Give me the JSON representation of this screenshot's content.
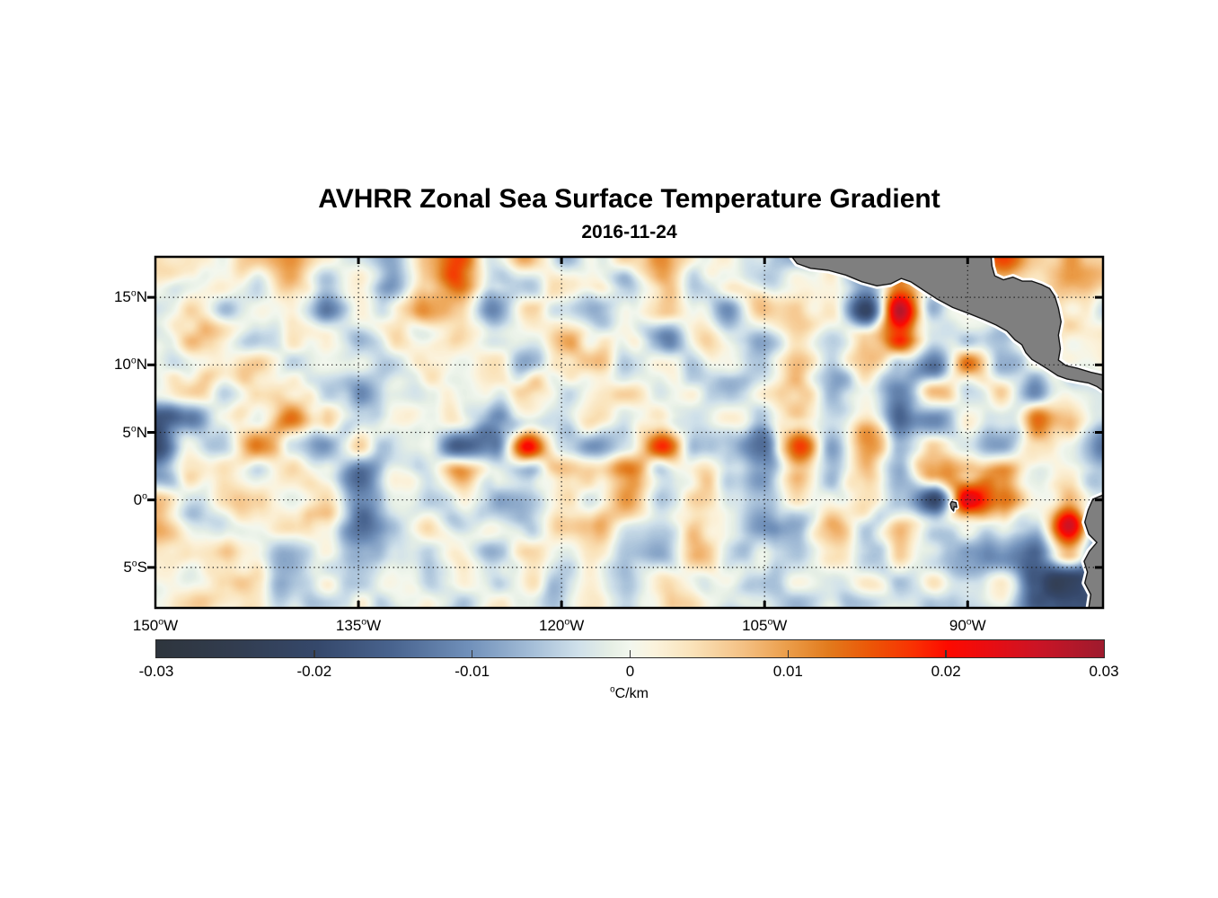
{
  "figure": {
    "title": "AVHRR Zonal Sea Surface Temperature Gradient",
    "date": "2016-11-24"
  },
  "style": {
    "background": "#ffffff",
    "axis_color": "#000000",
    "grid_color": "#1a1a1a",
    "text_color": "#000000"
  },
  "chart_data": {
    "type": "heatmap",
    "title": "AVHRR Zonal Sea Surface Temperature Gradient",
    "subtitle": "2016-11-24",
    "variable": "zonal sea surface temperature gradient",
    "units": "°C/km",
    "extent": {
      "lon_west_deg_w": 150,
      "lon_east_deg_w": 80,
      "lat_north": 18,
      "lat_south": -8
    },
    "x_axis": {
      "ticks": [
        {
          "lon_deg_w": 150,
          "label": "150°W"
        },
        {
          "lon_deg_w": 135,
          "label": "135°W"
        },
        {
          "lon_deg_w": 120,
          "label": "120°W"
        },
        {
          "lon_deg_w": 105,
          "label": "105°W"
        },
        {
          "lon_deg_w": 90,
          "label": "90°W"
        }
      ],
      "grid_lons_deg_w": [
        135,
        120,
        105,
        90
      ]
    },
    "y_axis": {
      "ticks": [
        {
          "lat": 15,
          "label": "15°N"
        },
        {
          "lat": 10,
          "label": "10°N"
        },
        {
          "lat": 5,
          "label": "5°N"
        },
        {
          "lat": 0,
          "label": "0°"
        },
        {
          "lat": -5,
          "label": "5°S"
        }
      ],
      "grid_lats": [
        15,
        10,
        5,
        0,
        -5
      ]
    },
    "colorbar": {
      "min": -0.03,
      "max": 0.03,
      "tick_values": [
        -0.03,
        -0.02,
        -0.01,
        0,
        0.01,
        0.02,
        0.03
      ],
      "tick_labels": [
        "-0.03",
        "-0.02",
        "-0.01",
        "0",
        "0.01",
        "0.02",
        "0.03"
      ],
      "inner_tick_values": [
        -0.02,
        -0.01,
        0,
        0.01,
        0.02
      ],
      "label": "°C/km",
      "stops": [
        {
          "t": 0.0,
          "color": "#2e353d"
        },
        {
          "t": 0.085,
          "color": "#323d50"
        },
        {
          "t": 0.17,
          "color": "#35486b"
        },
        {
          "t": 0.25,
          "color": "#49648f"
        },
        {
          "t": 0.33,
          "color": "#7090ba"
        },
        {
          "t": 0.4,
          "color": "#a7c0d9"
        },
        {
          "t": 0.445,
          "color": "#cfe0ea"
        },
        {
          "t": 0.48,
          "color": "#e6efe5"
        },
        {
          "t": 0.5,
          "color": "#f2f7ee"
        },
        {
          "t": 0.525,
          "color": "#fbf3dd"
        },
        {
          "t": 0.565,
          "color": "#fae3ba"
        },
        {
          "t": 0.62,
          "color": "#f4c083"
        },
        {
          "t": 0.665,
          "color": "#eb9e4b"
        },
        {
          "t": 0.71,
          "color": "#e27a1c"
        },
        {
          "t": 0.755,
          "color": "#ec5506"
        },
        {
          "t": 0.8,
          "color": "#f93002"
        },
        {
          "t": 0.835,
          "color": "#fd0a00"
        },
        {
          "t": 0.88,
          "color": "#e80d12"
        },
        {
          "t": 0.93,
          "color": "#cb1425"
        },
        {
          "t": 1.0,
          "color": "#9e1b2e"
        }
      ]
    },
    "grid": {
      "comment": "approximate field sampled from map, units 0.001 °C/km",
      "lon_start_deg_w": 150,
      "lon_step_deg": 2.5,
      "lat_start": 18,
      "lat_step_deg": -2,
      "values": [
        [
          2,
          3,
          -2,
          3,
          6,
          2,
          -2,
          -10,
          4,
          14,
          3,
          10,
          -6,
          4,
          10,
          6,
          -3,
          3,
          2,
          0,
          0,
          0,
          0,
          0,
          0,
          14,
          3,
          6,
          3
        ],
        [
          2,
          -3,
          3,
          -2,
          8,
          -3,
          2,
          -12,
          2,
          14,
          2,
          -4,
          3,
          6,
          -2,
          8,
          -4,
          2,
          -6,
          4,
          0,
          -8,
          14,
          0,
          0,
          4,
          2,
          8,
          5
        ],
        [
          2,
          4,
          -2,
          3,
          2,
          -8,
          3,
          -3,
          10,
          3,
          -10,
          4,
          -2,
          -8,
          3,
          10,
          3,
          -10,
          4,
          6,
          2,
          -20,
          28,
          -3,
          3,
          0,
          0,
          4,
          -3
        ],
        [
          -2,
          3,
          5,
          -3,
          2,
          4,
          -6,
          3,
          -3,
          6,
          -3,
          2,
          6,
          -3,
          2,
          -8,
          4,
          -2,
          -3,
          4,
          -6,
          4,
          16,
          -6,
          -3,
          -8,
          0,
          2,
          4
        ],
        [
          3,
          -4,
          2,
          6,
          -2,
          3,
          2,
          -4,
          4,
          -2,
          3,
          -6,
          2,
          4,
          -4,
          2,
          -3,
          5,
          -2,
          3,
          -4,
          8,
          -4,
          -16,
          12,
          -6,
          0,
          0,
          3
        ],
        [
          2,
          3,
          -6,
          2,
          4,
          -3,
          -8,
          3,
          2,
          -4,
          2,
          3,
          -4,
          2,
          3,
          -3,
          2,
          -4,
          3,
          2,
          -3,
          4,
          -8,
          10,
          -4,
          8,
          -8,
          0,
          0
        ],
        [
          -18,
          -10,
          3,
          -2,
          14,
          2,
          -3,
          2,
          -2,
          3,
          -6,
          2,
          -3,
          3,
          -2,
          3,
          -4,
          2,
          -3,
          3,
          -4,
          3,
          -14,
          -10,
          4,
          -3,
          10,
          3,
          -4
        ],
        [
          -20,
          4,
          -3,
          14,
          -3,
          -12,
          6,
          -4,
          -3,
          -16,
          -12,
          22,
          -4,
          -10,
          -4,
          18,
          -6,
          -8,
          -14,
          18,
          -8,
          10,
          -6,
          4,
          -3,
          -10,
          4,
          -4,
          -12
        ],
        [
          -8,
          3,
          2,
          -3,
          3,
          -3,
          -12,
          4,
          -4,
          12,
          -4,
          -10,
          4,
          3,
          8,
          -3,
          3,
          -4,
          -8,
          6,
          -4,
          8,
          -10,
          8,
          6,
          10,
          -4,
          3,
          -3
        ],
        [
          2,
          -3,
          4,
          2,
          -3,
          3,
          -8,
          3,
          -3,
          4,
          -6,
          -4,
          3,
          -2,
          8,
          -3,
          2,
          -3,
          -6,
          3,
          -4,
          4,
          -8,
          -20,
          26,
          10,
          -3,
          6,
          -2
        ],
        [
          3,
          2,
          -4,
          -2,
          3,
          -3,
          -10,
          -4,
          6,
          -3,
          2,
          -4,
          8,
          8,
          -4,
          -3,
          4,
          -3,
          -10,
          -6,
          6,
          -6,
          6,
          -4,
          4,
          -3,
          -6,
          26,
          -6
        ],
        [
          -2,
          4,
          2,
          -3,
          -6,
          3,
          -4,
          2,
          -3,
          3,
          -4,
          2,
          -3,
          3,
          -2,
          -8,
          6,
          -3,
          2,
          -4,
          3,
          -4,
          4,
          -6,
          -4,
          -8,
          -14,
          8,
          -12
        ],
        [
          2,
          -3,
          3,
          2,
          -3,
          2,
          -2,
          4,
          -3,
          2,
          -3,
          4,
          -4,
          2,
          -3,
          2,
          -4,
          3,
          -2,
          2,
          -3,
          3,
          -4,
          3,
          -6,
          4,
          -18,
          -22,
          -16
        ],
        [
          1,
          2,
          -2,
          3,
          2,
          -3,
          2,
          -2,
          3,
          -4,
          2,
          3,
          -3,
          2,
          -2,
          3,
          2,
          -3,
          2,
          -2,
          3,
          -3,
          2,
          -3,
          -8,
          -4,
          -14,
          -18,
          -12
        ]
      ]
    },
    "land": {
      "fill": "#7f7f7f",
      "outline": "#141414",
      "coast_halo": "#ffffff",
      "polygons": {
        "central_america": [
          [
            103.2,
            18.3
          ],
          [
            102.6,
            17.5
          ],
          [
            101.6,
            17.15
          ],
          [
            100.3,
            17.0
          ],
          [
            99.0,
            16.65
          ],
          [
            97.8,
            16.15
          ],
          [
            96.7,
            15.85
          ],
          [
            95.7,
            16.0
          ],
          [
            94.9,
            16.4
          ],
          [
            94.2,
            16.15
          ],
          [
            93.3,
            15.55
          ],
          [
            92.3,
            14.9
          ],
          [
            91.1,
            14.25
          ],
          [
            89.9,
            13.8
          ],
          [
            88.8,
            13.35
          ],
          [
            87.9,
            12.95
          ],
          [
            87.1,
            12.5
          ],
          [
            86.5,
            11.85
          ],
          [
            86.0,
            11.5
          ],
          [
            85.7,
            10.9
          ],
          [
            85.25,
            10.4
          ],
          [
            84.65,
            10.05
          ],
          [
            83.95,
            9.6
          ],
          [
            83.35,
            9.2
          ],
          [
            82.65,
            8.95
          ],
          [
            81.85,
            8.8
          ],
          [
            81.05,
            8.65
          ],
          [
            80.45,
            8.4
          ],
          [
            79.8,
            7.95
          ],
          [
            79.8,
            9.2
          ],
          [
            80.9,
            9.45
          ],
          [
            81.9,
            9.75
          ],
          [
            82.75,
            9.95
          ],
          [
            83.3,
            10.35
          ],
          [
            83.15,
            11.2
          ],
          [
            83.3,
            12.2
          ],
          [
            83.1,
            13.2
          ],
          [
            83.3,
            14.2
          ],
          [
            83.55,
            15.05
          ],
          [
            83.95,
            15.65
          ],
          [
            84.55,
            15.95
          ],
          [
            85.25,
            16.2
          ],
          [
            85.95,
            16.2
          ],
          [
            86.65,
            16.5
          ],
          [
            87.35,
            16.3
          ],
          [
            88.0,
            16.6
          ],
          [
            88.2,
            17.3
          ],
          [
            88.3,
            18.3
          ]
        ],
        "south_america": [
          [
            79.8,
            0.45
          ],
          [
            80.75,
            0.05
          ],
          [
            81.1,
            -0.75
          ],
          [
            81.35,
            -1.65
          ],
          [
            81.05,
            -2.55
          ],
          [
            80.45,
            -3.15
          ],
          [
            81.0,
            -3.8
          ],
          [
            81.4,
            -4.55
          ],
          [
            81.15,
            -5.35
          ],
          [
            81.35,
            -6.15
          ],
          [
            80.9,
            -7.0
          ],
          [
            81.1,
            -8.3
          ],
          [
            79.8,
            -8.3
          ]
        ],
        "galapagos": [
          [
            91.18,
            -0.12
          ],
          [
            90.86,
            -0.2
          ],
          [
            90.8,
            -0.55
          ],
          [
            91.0,
            -0.5
          ],
          [
            91.04,
            -0.82
          ],
          [
            91.2,
            -0.62
          ],
          [
            91.27,
            -0.3
          ]
        ]
      }
    }
  }
}
